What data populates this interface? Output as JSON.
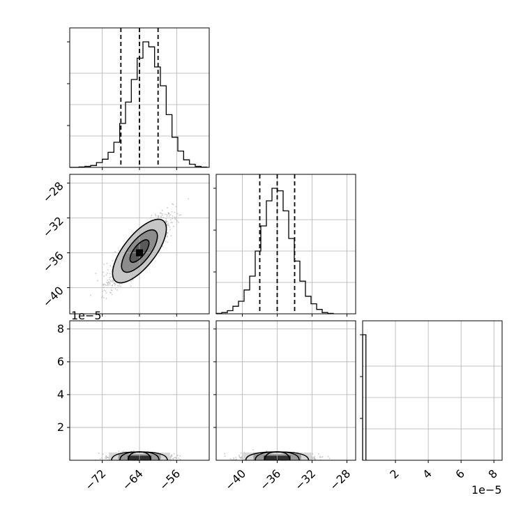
{
  "chart_data": {
    "type": "corner",
    "parameters": [
      {
        "id": "p0",
        "range": [
          -79,
          -49
        ],
        "ticks": [
          -72,
          -64,
          -56
        ],
        "tick_labels": [
          "−72",
          "−64",
          "−56"
        ],
        "offset_text": "",
        "histogram": {
          "bin_start": -77,
          "bin_width": 1.25,
          "counts": [
            0.3,
            0.8,
            1.5,
            3.8,
            6.5,
            12,
            20,
            35,
            52,
            70,
            87,
            100,
            96,
            80,
            65,
            42,
            24,
            13,
            6,
            2.5,
            0.8,
            0.2
          ]
        },
        "quantiles": [
          -68,
          -64,
          -60
        ]
      },
      {
        "id": "p1",
        "range": [
          -43,
          -27
        ],
        "ticks": [
          -40,
          -36,
          -32,
          -28
        ],
        "tick_labels": [
          "−40",
          "−36",
          "−32",
          "−28"
        ],
        "offset_text": "1e−5",
        "histogram": {
          "bin_start": -43,
          "bin_width": 0.64,
          "counts": [
            0.3,
            1,
            2.5,
            6,
            10,
            19,
            30,
            50,
            70,
            90,
            100,
            98,
            82,
            60,
            42,
            26,
            14,
            8,
            3.5,
            1,
            0.3
          ]
        },
        "quantiles": [
          -38,
          -36,
          -34
        ]
      },
      {
        "id": "p2",
        "range": [
          0,
          8.5
        ],
        "ticks": [
          2,
          4,
          6,
          8
        ],
        "tick_labels": [
          "2",
          "4",
          "6",
          "8"
        ],
        "offset_text": "1e−5",
        "histogram": {
          "bin_start": 0,
          "bin_width": 0.2,
          "counts": [
            100
          ]
        },
        "quantiles": []
      }
    ],
    "scatter_2d": [
      {
        "x_param": "p0",
        "y_param": "p1",
        "center": [
          -64,
          -35.8
        ],
        "sigma": [
          3,
          1.8
        ],
        "correlation": 0.85,
        "contours": [
          {
            "level_sigma": 0.85,
            "shading": "#5a5a5a"
          },
          {
            "level_sigma": 1.6,
            "shading": "#8c8c8c"
          },
          {
            "level_sigma": 2.4,
            "shading": "#c6c6c6"
          }
        ],
        "peak_value": [
          -64,
          -36
        ]
      },
      {
        "x_param": "p0",
        "y_param": "p2",
        "center": [
          -64,
          0.12
        ],
        "sigma": [
          3,
          0.15
        ]
      },
      {
        "x_param": "p1",
        "y_param": "p2",
        "center": [
          -36,
          0.12
        ],
        "sigma": [
          1.8,
          0.15
        ]
      }
    ],
    "xlabel": "",
    "ylabel": "",
    "grid": true,
    "title": ""
  }
}
